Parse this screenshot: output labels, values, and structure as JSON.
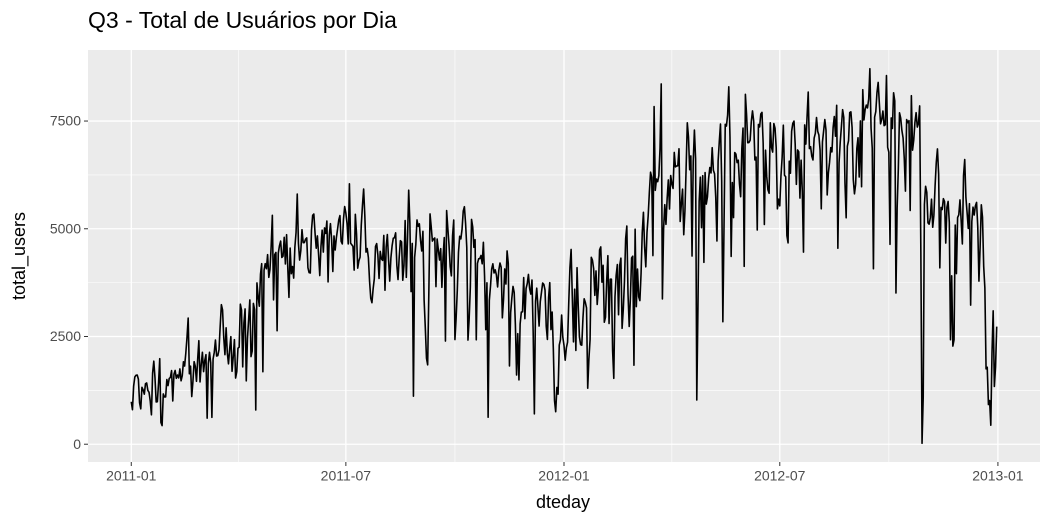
{
  "chart_data": {
    "type": "line",
    "title": "Q3 - Total de Usuários por Dia",
    "x_label": "dteday",
    "y_label": "total_users",
    "color": "#000000",
    "grid": true,
    "xlim": [
      -36.5,
      766.5
    ],
    "xticks": [
      {
        "value": 0,
        "label": "2011-01"
      },
      {
        "value": 181,
        "label": "2011-07"
      },
      {
        "value": 365,
        "label": "2012-01"
      },
      {
        "value": 547,
        "label": "2012-07"
      },
      {
        "value": 731,
        "label": "2013-01"
      }
    ],
    "ylim": [
      -412.6,
      9148.6
    ],
    "yticks": [
      0,
      2500,
      5000,
      7500
    ],
    "x": [
      0,
      1,
      2,
      3,
      4,
      5,
      6,
      7,
      8,
      9,
      10,
      11,
      12,
      13,
      14,
      15,
      16,
      17,
      18,
      19,
      20,
      21,
      22,
      23,
      24,
      25,
      26,
      27,
      28,
      29,
      30,
      31,
      32,
      33,
      34,
      35,
      36,
      37,
      38,
      39,
      40,
      41,
      42,
      43,
      44,
      45,
      46,
      47,
      48,
      49,
      50,
      51,
      52,
      53,
      54,
      55,
      56,
      57,
      58,
      59,
      60,
      61,
      62,
      63,
      64,
      65,
      66,
      67,
      68,
      69,
      70,
      71,
      72,
      73,
      74,
      75,
      76,
      77,
      78,
      79,
      80,
      81,
      82,
      83,
      84,
      85,
      86,
      87,
      88,
      89,
      90,
      91,
      92,
      93,
      94,
      95,
      96,
      97,
      98,
      99,
      100,
      101,
      102,
      103,
      104,
      105,
      106,
      107,
      108,
      109,
      110,
      111,
      112,
      113,
      114,
      115,
      116,
      117,
      118,
      119,
      120,
      121,
      122,
      123,
      124,
      125,
      126,
      127,
      128,
      129,
      130,
      131,
      132,
      133,
      134,
      135,
      136,
      137,
      138,
      139,
      140,
      141,
      142,
      143,
      144,
      145,
      146,
      147,
      148,
      149,
      150,
      151,
      152,
      153,
      154,
      155,
      156,
      157,
      158,
      159,
      160,
      161,
      162,
      163,
      164,
      165,
      166,
      167,
      168,
      169,
      170,
      171,
      172,
      173,
      174,
      175,
      176,
      177,
      178,
      179,
      180,
      181,
      182,
      183,
      184,
      185,
      186,
      187,
      188,
      189,
      190,
      191,
      192,
      193,
      194,
      195,
      196,
      197,
      198,
      199,
      200,
      201,
      202,
      203,
      204,
      205,
      206,
      207,
      208,
      209,
      210,
      211,
      212,
      213,
      214,
      215,
      216,
      217,
      218,
      219,
      220,
      221,
      222,
      223,
      224,
      225,
      226,
      227,
      228,
      229,
      230,
      231,
      232,
      233,
      234,
      235,
      236,
      237,
      238,
      239,
      240,
      241,
      242,
      243,
      244,
      245,
      246,
      247,
      248,
      249,
      250,
      251,
      252,
      253,
      254,
      255,
      256,
      257,
      258,
      259,
      260,
      261,
      262,
      263,
      264,
      265,
      266,
      267,
      268,
      269,
      270,
      271,
      272,
      273,
      274,
      275,
      276,
      277,
      278,
      279,
      280,
      281,
      282,
      283,
      284,
      285,
      286,
      287,
      288,
      289,
      290,
      291,
      292,
      293,
      294,
      295,
      296,
      297,
      298,
      299,
      300,
      301,
      302,
      303,
      304,
      305,
      306,
      307,
      308,
      309,
      310,
      311,
      312,
      313,
      314,
      315,
      316,
      317,
      318,
      319,
      320,
      321,
      322,
      323,
      324,
      325,
      326,
      327,
      328,
      329,
      330,
      331,
      332,
      333,
      334,
      335,
      336,
      337,
      338,
      339,
      340,
      341,
      342,
      343,
      344,
      345,
      346,
      347,
      348,
      349,
      350,
      351,
      352,
      353,
      354,
      355,
      356,
      357,
      358,
      359,
      360,
      361,
      362,
      363,
      364,
      365,
      366,
      367,
      368,
      369,
      370,
      371,
      372,
      373,
      374,
      375,
      376,
      377,
      378,
      379,
      380,
      381,
      382,
      383,
      384,
      385,
      386,
      387,
      388,
      389,
      390,
      391,
      392,
      393,
      394,
      395,
      396,
      397,
      398,
      399,
      400,
      401,
      402,
      403,
      404,
      405,
      406,
      407,
      408,
      409,
      410,
      411,
      412,
      413,
      414,
      415,
      416,
      417,
      418,
      419,
      420,
      421,
      422,
      423,
      424,
      425,
      426,
      427,
      428,
      429,
      430,
      431,
      432,
      433,
      434,
      435,
      436,
      437,
      438,
      439,
      440,
      441,
      442,
      443,
      444,
      445,
      446,
      447,
      448,
      449,
      450,
      451,
      452,
      453,
      454,
      455,
      456,
      457,
      458,
      459,
      460,
      461,
      462,
      463,
      464,
      465,
      466,
      467,
      468,
      469,
      470,
      471,
      472,
      473,
      474,
      475,
      476,
      477,
      478,
      479,
      480,
      481,
      482,
      483,
      484,
      485,
      486,
      487,
      488,
      489,
      490,
      491,
      492,
      493,
      494,
      495,
      496,
      497,
      498,
      499,
      500,
      501,
      502,
      503,
      504,
      505,
      506,
      507,
      508,
      509,
      510,
      511,
      512,
      513,
      514,
      515,
      516,
      517,
      518,
      519,
      520,
      521,
      522,
      523,
      524,
      525,
      526,
      527,
      528,
      529,
      530,
      531,
      532,
      533,
      534,
      535,
      536,
      537,
      538,
      539,
      540,
      541,
      542,
      543,
      544,
      545,
      546,
      547,
      548,
      549,
      550,
      551,
      552,
      553,
      554,
      555,
      556,
      557,
      558,
      559,
      560,
      561,
      562,
      563,
      564,
      565,
      566,
      567,
      568,
      569,
      570,
      571,
      572,
      573,
      574,
      575,
      576,
      577,
      578,
      579,
      580,
      581,
      582,
      583,
      584,
      585,
      586,
      587,
      588,
      589,
      590,
      591,
      592,
      593,
      594,
      595,
      596,
      597,
      598,
      599,
      600,
      601,
      602,
      603,
      604,
      605,
      606,
      607,
      608,
      609,
      610,
      611,
      612,
      613,
      614,
      615,
      616,
      617,
      618,
      619,
      620,
      621,
      622,
      623,
      624,
      625,
      626,
      627,
      628,
      629,
      630,
      631,
      632,
      633,
      634,
      635,
      636,
      637,
      638,
      639,
      640,
      641,
      642,
      643,
      644,
      645,
      646,
      647,
      648,
      649,
      650,
      651,
      652,
      653,
      654,
      655,
      656,
      657,
      658,
      659,
      660,
      661,
      662,
      663,
      664,
      665,
      666,
      667,
      668,
      669,
      670,
      671,
      672,
      673,
      674,
      675,
      676,
      677,
      678,
      679,
      680,
      681,
      682,
      683,
      684,
      685,
      686,
      687,
      688,
      689,
      690,
      691,
      692,
      693,
      694,
      695,
      696,
      697,
      698,
      699,
      700,
      701,
      702,
      703,
      704,
      705,
      706,
      707,
      708,
      709,
      710,
      711,
      712,
      713,
      714,
      715,
      716,
      717,
      718,
      719,
      720,
      721,
      722,
      723,
      724,
      725,
      726,
      727,
      728,
      729,
      730
    ],
    "values": [
      985,
      801,
      1349,
      1562,
      1600,
      1606,
      1510,
      959,
      822,
      1321,
      1263,
      1162,
      1406,
      1421,
      1248,
      1204,
      1000,
      683,
      1650,
      1927,
      1543,
      981,
      986,
      1416,
      1985,
      506,
      431,
      1167,
      1098,
      1096,
      1501,
      1360,
      1526,
      1550,
      1708,
      1005,
      1623,
      1712,
      1530,
      1605,
      1538,
      1746,
      1472,
      1589,
      1913,
      1815,
      2115,
      2475,
      2927,
      1635,
      1812,
      1107,
      1450,
      1917,
      1807,
      1461,
      1969,
      2402,
      1446,
      1851,
      2134,
      1685,
      1944,
      2077,
      605,
      1872,
      2133,
      1891,
      623,
      1977,
      2132,
      2417,
      2046,
      2056,
      2192,
      2744,
      3239,
      3117,
      2471,
      2077,
      2703,
      2121,
      1865,
      2210,
      2496,
      1693,
      2028,
      2425,
      1536,
      1685,
      2227,
      2252,
      3249,
      3115,
      1795,
      2808,
      3141,
      1471,
      2455,
      2895,
      3348,
      2034,
      2162,
      3267,
      3126,
      795,
      3744,
      3429,
      3204,
      3944,
      4189,
      1683,
      4036,
      4191,
      4073,
      4400,
      3872,
      4058,
      4595,
      5312,
      3351,
      4401,
      4451,
      2633,
      4433,
      4608,
      4714,
      4333,
      4362,
      4803,
      4182,
      4864,
      4105,
      3409,
      4553,
      3958,
      4123,
      3855,
      4575,
      4917,
      5805,
      4660,
      4274,
      4492,
      4978,
      4677,
      4679,
      4758,
      4788,
      4098,
      3982,
      3974,
      4968,
      5312,
      5342,
      4906,
      4548,
      4833,
      4401,
      3915,
      4586,
      4966,
      4460,
      5020,
      4891,
      5180,
      3767,
      4844,
      5119,
      4744,
      4010,
      4835,
      4507,
      4790,
      4991,
      5202,
      5305,
      4708,
      4648,
      5225,
      5515,
      5362,
      5119,
      4649,
      6043,
      4665,
      4629,
      4592,
      4040,
      5336,
      4881,
      4086,
      4258,
      4342,
      5084,
      5538,
      5923,
      5302,
      4458,
      4541,
      4332,
      3784,
      3387,
      3285,
      3606,
      3840,
      4590,
      4656,
      4390,
      3846,
      4475,
      4302,
      4266,
      4845,
      3574,
      4576,
      4866,
      4294,
      3785,
      4326,
      4602,
      4780,
      4792,
      4905,
      4150,
      3820,
      4338,
      4725,
      4694,
      3805,
      4153,
      5191,
      3873,
      4758,
      5895,
      5130,
      3542,
      4661,
      1115,
      4334,
      4634,
      5204,
      5058,
      5115,
      4727,
      4484,
      4940,
      3351,
      2710,
      1996,
      1842,
      3544,
      5345,
      5046,
      4713,
      4763,
      4785,
      3659,
      4760,
      4511,
      4274,
      4539,
      3641,
      4352,
      4795,
      2395,
      5423,
      5010,
      4630,
      4120,
      3907,
      4839,
      5202,
      2429,
      2918,
      3570,
      4456,
      4826,
      4765,
      4985,
      5409,
      5511,
      5117,
      4563,
      2416,
      2913,
      3644,
      5217,
      5041,
      4570,
      4748,
      2424,
      4195,
      4304,
      4308,
      4381,
      4187,
      4687,
      3894,
      2659,
      3747,
      627,
      3331,
      3669,
      4068,
      4186,
      3974,
      4046,
      3926,
      3649,
      4035,
      4205,
      4109,
      2933,
      3368,
      4067,
      3717,
      4486,
      4195,
      1817,
      3053,
      3392,
      3663,
      3520,
      2765,
      1607,
      2566,
      1495,
      2792,
      3068,
      3071,
      3867,
      2914,
      3613,
      3727,
      3940,
      3614,
      3485,
      3811,
      2594,
      705,
      3322,
      3620,
      3190,
      2743,
      3310,
      3523,
      3740,
      3709,
      3577,
      2739,
      2431,
      3403,
      3750,
      2660,
      3068,
      2209,
      1011,
      754,
      1317,
      1162,
      2302,
      2423,
      2999,
      2485,
      2294,
      1951,
      2236,
      2368,
      3272,
      4098,
      4521,
      3425,
      2376,
      3598,
      2177,
      4097,
      3214,
      2493,
      2311,
      2298,
      2935,
      3376,
      3292,
      3163,
      1301,
      1977,
      2432,
      4339,
      4270,
      4075,
      3456,
      4023,
      3243,
      3624,
      4509,
      4579,
      3761,
      4151,
      2832,
      2947,
      3784,
      4375,
      2802,
      3830,
      3831,
      2169,
      1529,
      3422,
      3922,
      4169,
      3005,
      4154,
      4318,
      2689,
      3129,
      3777,
      4773,
      5062,
      3487,
      2732,
      3389,
      4322,
      4363,
      1834,
      4990,
      3194,
      4066,
      3423,
      3333,
      3956,
      4916,
      5382,
      4569,
      4118,
      4911,
      5298,
      5847,
      6312,
      6192,
      4378,
      7836,
      5892,
      6153,
      6093,
      6230,
      6871,
      8362,
      3372,
      4996,
      5558,
      5102,
      5698,
      6133,
      5459,
      6235,
      6041,
      5936,
      6772,
      6436,
      6457,
      6460,
      6857,
      5169,
      5585,
      5918,
      4862,
      5409,
      6398,
      7460,
      7132,
      6370,
      6691,
      4367,
      6565,
      7290,
      6624,
      1027,
      3214,
      5633,
      6196,
      5026,
      6233,
      4220,
      6304,
      5572,
      5740,
      6169,
      6421,
      6296,
      6883,
      6359,
      6273,
      5728,
      4717,
      6572,
      7030,
      7429,
      6118,
      2843,
      5115,
      7424,
      7384,
      7639,
      8294,
      7129,
      4359,
      6073,
      5260,
      6770,
      6734,
      6536,
      6591,
      6043,
      5743,
      6855,
      7338,
      4127,
      8120,
      7641,
      6998,
      7001,
      7055,
      7494,
      7736,
      7498,
      6598,
      6664,
      4972,
      7421,
      7363,
      7665,
      7702,
      6978,
      5099,
      6825,
      6211,
      5905,
      5823,
      7458,
      6891,
      6779,
      7442,
      7335,
      6879,
      5463,
      5687,
      5531,
      6227,
      6660,
      7403,
      6241,
      6207,
      4840,
      4672,
      6569,
      6290,
      7264,
      7446,
      7499,
      6969,
      6031,
      6830,
      6786,
      5713,
      6591,
      5870,
      4459,
      7410,
      6966,
      7592,
      8173,
      6861,
      6904,
      6685,
      6597,
      7105,
      7216,
      7580,
      7261,
      7175,
      6824,
      5464,
      7013,
      7273,
      7534,
      7286,
      5786,
      6299,
      6544,
      6883,
      6784,
      7347,
      7605,
      7148,
      7865,
      4549,
      6530,
      7006,
      7375,
      7765,
      7582,
      6053,
      5255,
      6917,
      7040,
      7697,
      7713,
      7350,
      6140,
      5810,
      6034,
      6864,
      7112,
      6203,
      7504,
      5976,
      8227,
      7525,
      7767,
      7870,
      7804,
      8009,
      8714,
      7333,
      6869,
      4073,
      7591,
      7720,
      8167,
      8395,
      7907,
      7436,
      7538,
      7733,
      7393,
      7415,
      8555,
      6889,
      6778,
      4639,
      7572,
      7328,
      8156,
      7965,
      3510,
      5478,
      6392,
      7691,
      7570,
      7282,
      7109,
      6639,
      5875,
      7534,
      7461,
      7509,
      5424,
      8090,
      6824,
      7058,
      7466,
      7693,
      7359,
      7444,
      7852,
      4459,
      22,
      1096,
      5566,
      5986,
      5847,
      5138,
      5107,
      5259,
      5686,
      5035,
      5315,
      5992,
      6536,
      6852,
      6269,
      4094,
      5495,
      5445,
      5698,
      5629,
      4669,
      5499,
      5634,
      5146,
      2425,
      3910,
      2277,
      2424,
      5087,
      3959,
      5260,
      5323,
      5668,
      5191,
      4649,
      6234,
      6606,
      5729,
      5375,
      5008,
      5582,
      3228,
      5170,
      5501,
      5319,
      5532,
      5611,
      5047,
      3786,
      4585,
      5557,
      5267,
      4128,
      3623,
      1749,
      1787,
      920,
      1013,
      441,
      2114,
      3095,
      1341,
      1796,
      2729
    ]
  }
}
